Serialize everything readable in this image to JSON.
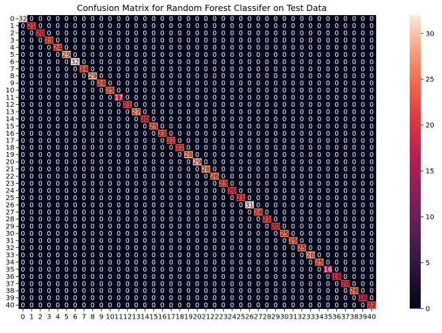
{
  "chart_data": {
    "type": "heatmap",
    "title": "Confusion Matrix for Random Forest Classifer on Test Data",
    "xlabel": "",
    "ylabel": "",
    "row_labels": [
      "0",
      "1",
      "2",
      "3",
      "4",
      "5",
      "6",
      "7",
      "8",
      "9",
      "10",
      "11",
      "12",
      "13",
      "14",
      "15",
      "16",
      "17",
      "18",
      "19",
      "20",
      "21",
      "22",
      "23",
      "24",
      "25",
      "26",
      "27",
      "28",
      "29",
      "30",
      "31",
      "32",
      "33",
      "34",
      "35",
      "36",
      "37",
      "38",
      "39",
      "40"
    ],
    "col_labels": [
      "0",
      "1",
      "2",
      "3",
      "4",
      "5",
      "6",
      "7",
      "8",
      "9",
      "10",
      "11",
      "12",
      "13",
      "14",
      "15",
      "16",
      "17",
      "18",
      "19",
      "20",
      "21",
      "22",
      "23",
      "24",
      "25",
      "26",
      "27",
      "28",
      "29",
      "30",
      "31",
      "32",
      "33",
      "34",
      "35",
      "36",
      "37",
      "38",
      "39",
      "40"
    ],
    "off_diagonal_value": 0,
    "diagonal_values": [
      32,
      21,
      20,
      23,
      24,
      29,
      32,
      24,
      29,
      24,
      25,
      17,
      21,
      27,
      20,
      25,
      23,
      22,
      22,
      28,
      29,
      28,
      26,
      23,
      20,
      21,
      31,
      24,
      21,
      20,
      25,
      25,
      25,
      28,
      25,
      16,
      19,
      20,
      26,
      18,
      22
    ],
    "color_scale": {
      "min": 0,
      "max": 32,
      "colormap": "rocket",
      "ticks": [
        0,
        5,
        10,
        15,
        20,
        25,
        30
      ]
    },
    "annotations": "cell values shown in each cell",
    "grid": false,
    "legend": "colorbar-right"
  }
}
